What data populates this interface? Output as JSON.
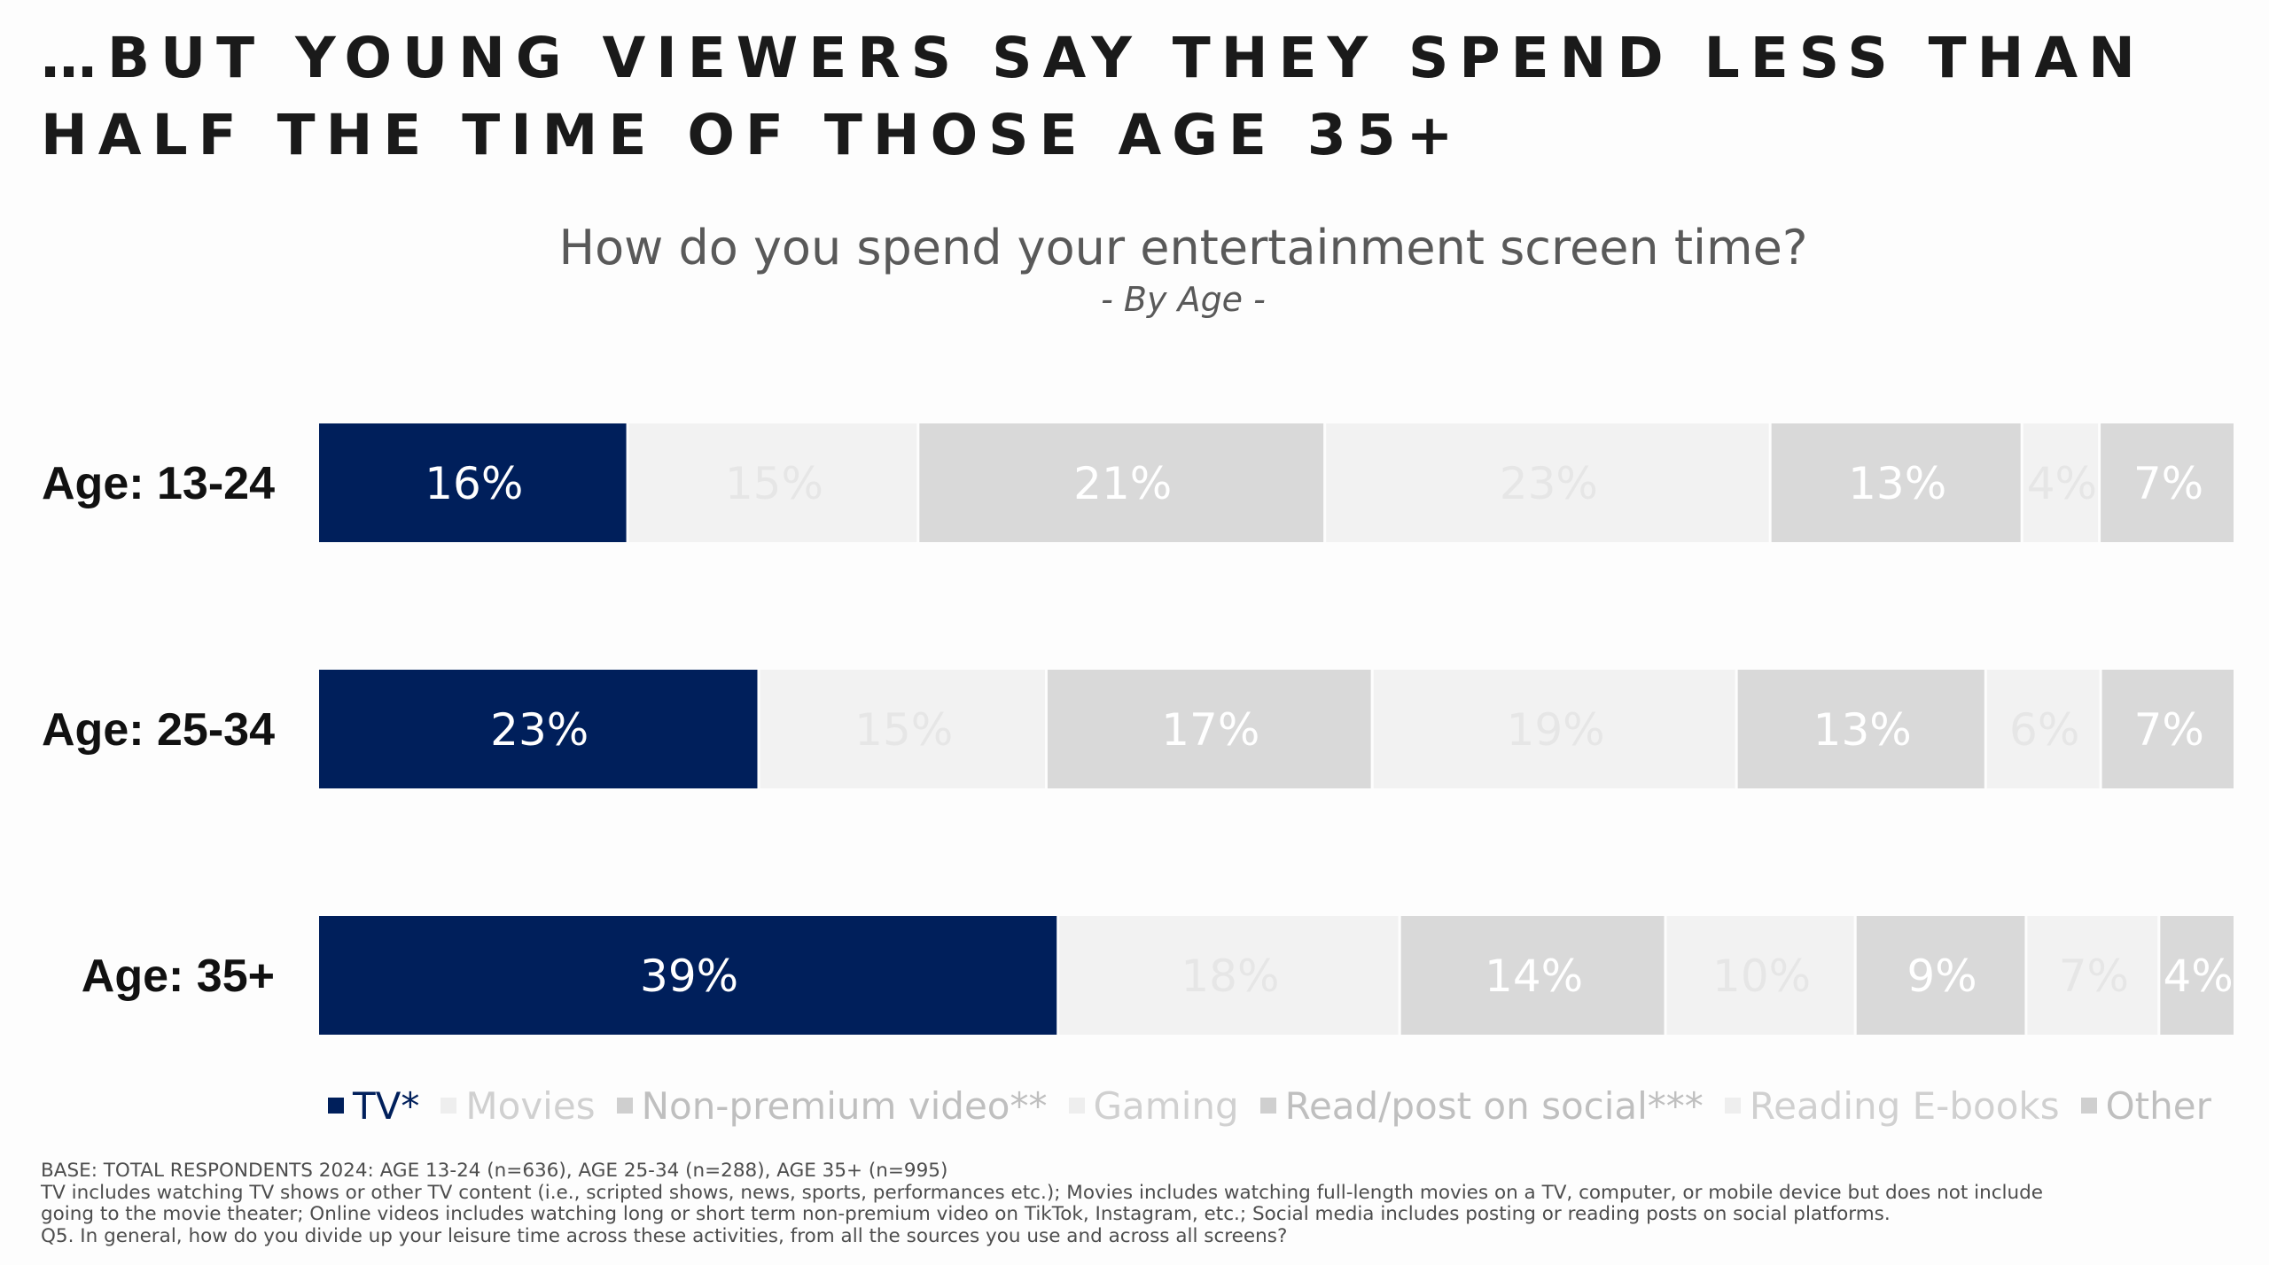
{
  "headline": "…BUT YOUNG VIEWERS SAY THEY SPEND LESS THAN HALF THE TIME OF THOSE AGE 35+",
  "colors": {
    "tv": "#001f5b",
    "light": "#f2f2f2",
    "mid": "#d9d9d9",
    "text_dark": "#1a1a1a",
    "text_gray": "#595959"
  },
  "chart_data": {
    "type": "bar",
    "orientation": "horizontal",
    "stacked": "100%",
    "title": "How do you spend your entertainment screen time?",
    "subtitle": "- By Age -",
    "categories": [
      "Age: 13-24",
      "Age: 25-34",
      "Age: 35+"
    ],
    "series": [
      {
        "name": "TV*",
        "values": [
          16,
          23,
          39
        ],
        "color": "#001f5b",
        "label_color": "#ffffff"
      },
      {
        "name": "Movies",
        "values": [
          15,
          15,
          18
        ],
        "color": "#f2f2f2",
        "label_color": "#e6e6e6"
      },
      {
        "name": "Non-premium video**",
        "values": [
          21,
          17,
          14
        ],
        "color": "#d9d9d9",
        "label_color": "#ffffff"
      },
      {
        "name": "Gaming",
        "values": [
          23,
          19,
          10
        ],
        "color": "#f2f2f2",
        "label_color": "#e6e6e6"
      },
      {
        "name": "Read/post on social***",
        "values": [
          13,
          13,
          9
        ],
        "color": "#d9d9d9",
        "label_color": "#ffffff"
      },
      {
        "name": "Reading E-books",
        "values": [
          4,
          6,
          7
        ],
        "color": "#f2f2f2",
        "label_color": "#e6e6e6"
      },
      {
        "name": "Other",
        "values": [
          7,
          7,
          4
        ],
        "color": "#d9d9d9",
        "label_color": "#ffffff"
      }
    ],
    "value_suffix": "%",
    "legend_position": "bottom",
    "grid": false
  },
  "footnote": {
    "line1": "BASE: TOTAL RESPONDENTS 2024: AGE 13-24 (n=636), AGE 25-34 (n=288), AGE 35+ (n=995)",
    "line2": "TV includes watching TV shows or other TV content (i.e., scripted shows, news, sports, performances etc.); Movies includes watching full-length movies on a TV, computer, or mobile device but does not include",
    "line3": "going to the movie theater; Online videos includes watching long or short term non-premium video on TikTok, Instagram, etc.; Social media includes posting or reading posts on social platforms.",
    "line4": "Q5. In general, how do you divide up your leisure time across these activities, from all the sources you use and across all screens?"
  }
}
